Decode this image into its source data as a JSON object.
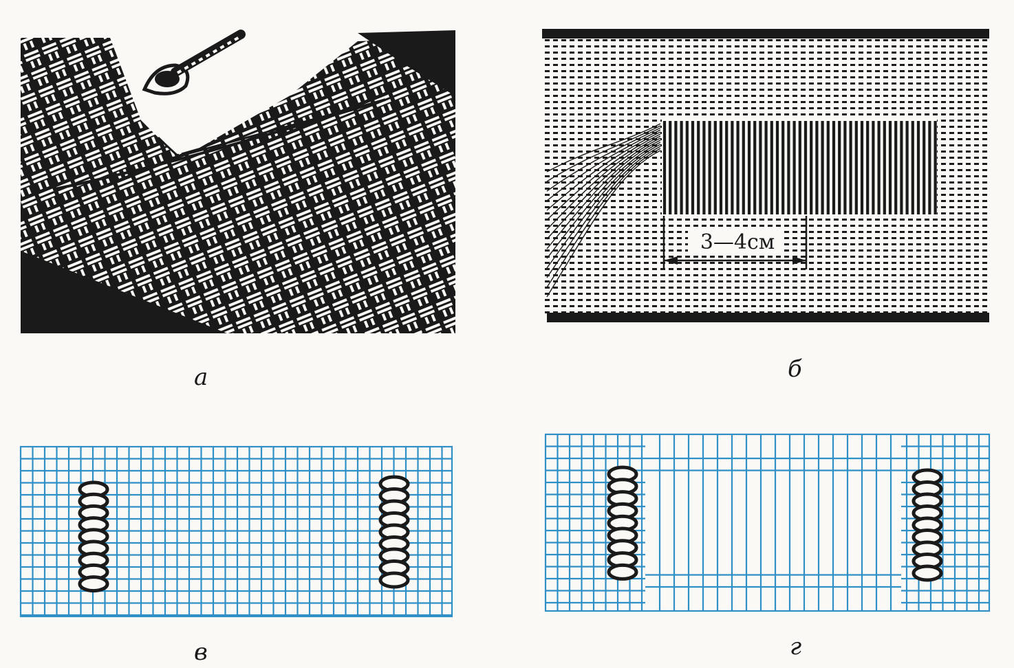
{
  "panels": {
    "a": {
      "caption": "а"
    },
    "b": {
      "caption": "б",
      "dimension_label": "3—4см"
    },
    "v": {
      "caption": "в"
    },
    "g": {
      "caption": "г"
    }
  },
  "colors": {
    "ink": "#1a1a1a",
    "grid_blue": "#2f8fc7",
    "background": "#fbf9f6"
  }
}
